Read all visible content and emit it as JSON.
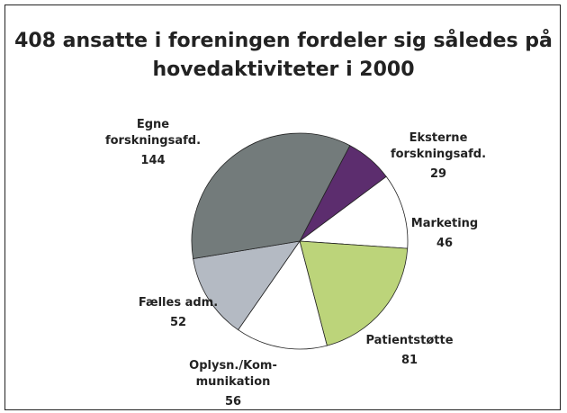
{
  "chart_data": {
    "type": "pie",
    "title": "408 ansatte i foreningen fordeler sig således på\nhovedaktiviteter i 2000",
    "categories": [
      "Eksterne\nforskningsafd.",
      "Marketing",
      "Patientstøtte",
      "Oplysn./Kom-\nmunikation",
      "Fælles adm.",
      "Egne\nforskningsafd."
    ],
    "values": [
      29,
      46,
      81,
      56,
      52,
      144
    ],
    "colors": [
      "#5c2d6e",
      "#ffffff",
      "#bcd47a",
      "#ffffff",
      "#b4bac3",
      "#737b7b"
    ]
  }
}
